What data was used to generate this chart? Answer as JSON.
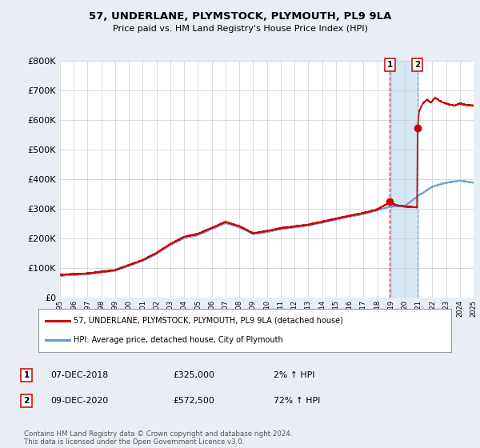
{
  "title": "57, UNDERLANE, PLYMSTOCK, PLYMOUTH, PL9 9LA",
  "subtitle": "Price paid vs. HM Land Registry's House Price Index (HPI)",
  "legend_line1": "57, UNDERLANE, PLYMSTOCK, PLYMOUTH, PL9 9LA (detached house)",
  "legend_line2": "HPI: Average price, detached house, City of Plymouth",
  "annotation1_date": "07-DEC-2018",
  "annotation1_price": "£325,000",
  "annotation1_hpi": "2% ↑ HPI",
  "annotation2_date": "09-DEC-2020",
  "annotation2_price": "£572,500",
  "annotation2_hpi": "72% ↑ HPI",
  "footer": "Contains HM Land Registry data © Crown copyright and database right 2024.\nThis data is licensed under the Open Government Licence v3.0.",
  "red_color": "#cc0000",
  "blue_color": "#6699cc",
  "bg_color": "#e8eef4",
  "plot_bg": "#ffffff",
  "grid_color": "#cccccc",
  "ylim_max": 800000,
  "sale1_year": 2018.92,
  "sale1_value": 325000,
  "sale2_year": 2020.92,
  "sale2_value": 572500
}
